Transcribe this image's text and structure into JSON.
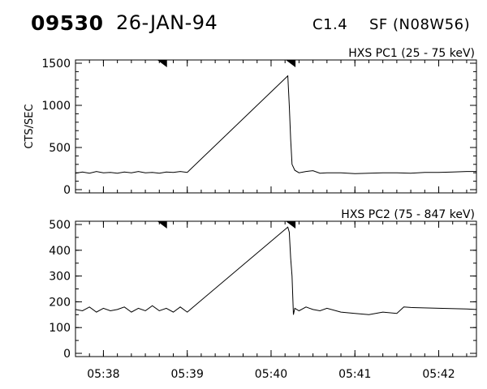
{
  "header": {
    "event_number": "09530",
    "date": "26-JAN-94",
    "flare_class": "C1.4",
    "flare_location": "SF (N08W56)"
  },
  "chart_data": [
    {
      "type": "line",
      "title": "HXS PC1 (25 - 75 keV)",
      "ylabel": "CTS/SEC",
      "xlim": [
        "05:37:40",
        "05:42:27"
      ],
      "ylim": [
        0,
        1500
      ],
      "yticks": [
        "0",
        "500",
        "1000",
        "1500"
      ],
      "xticks": [
        "05:38",
        "05:39",
        "05:40",
        "05:41",
        "05:42"
      ],
      "markers": [
        "05:38:42",
        "05:40:14"
      ],
      "series": [
        {
          "x": [
            "05:37:40",
            "05:37:45",
            "05:37:50",
            "05:37:55",
            "05:38:00",
            "05:38:05",
            "05:38:10",
            "05:38:15",
            "05:38:20",
            "05:38:25",
            "05:38:30",
            "05:38:35",
            "05:38:40",
            "05:38:45",
            "05:38:50",
            "05:38:55",
            "05:39:00",
            "05:40:12",
            "05:40:13",
            "05:40:14",
            "05:40:15",
            "05:40:17",
            "05:40:20",
            "05:40:25",
            "05:40:30",
            "05:40:35",
            "05:40:40",
            "05:40:50",
            "05:41:00",
            "05:41:10",
            "05:41:20",
            "05:41:30",
            "05:41:40",
            "05:41:50",
            "05:42:00",
            "05:42:10",
            "05:42:20",
            "05:42:27"
          ],
          "values": [
            195,
            210,
            195,
            215,
            200,
            205,
            195,
            210,
            200,
            215,
            200,
            205,
            195,
            210,
            205,
            215,
            205,
            1350,
            1000,
            600,
            300,
            230,
            200,
            215,
            225,
            195,
            200,
            200,
            190,
            195,
            200,
            200,
            195,
            205,
            205,
            210,
            215,
            215
          ]
        }
      ]
    },
    {
      "type": "line",
      "title": "HXS PC2 (75 - 847 keV)",
      "ylabel": "",
      "xlim": [
        "05:37:40",
        "05:42:27"
      ],
      "ylim": [
        0,
        500
      ],
      "yticks": [
        "0",
        "100",
        "200",
        "300",
        "400",
        "500"
      ],
      "xticks": [
        "05:38",
        "05:39",
        "05:40",
        "05:41",
        "05:42"
      ],
      "markers": [
        "05:38:42",
        "05:40:14"
      ],
      "series": [
        {
          "x": [
            "05:37:40",
            "05:37:45",
            "05:37:50",
            "05:37:55",
            "05:38:00",
            "05:38:05",
            "05:38:10",
            "05:38:15",
            "05:38:20",
            "05:38:25",
            "05:38:30",
            "05:38:35",
            "05:38:40",
            "05:38:45",
            "05:38:50",
            "05:38:55",
            "05:39:00",
            "05:40:12",
            "05:40:13",
            "05:40:14",
            "05:40:15",
            "05:40:16",
            "05:40:17",
            "05:40:20",
            "05:40:25",
            "05:40:30",
            "05:40:35",
            "05:40:40",
            "05:40:50",
            "05:41:00",
            "05:41:10",
            "05:41:20",
            "05:41:30",
            "05:41:35",
            "05:41:40",
            "05:42:00",
            "05:42:20",
            "05:42:27"
          ],
          "values": [
            170,
            165,
            180,
            160,
            175,
            165,
            170,
            180,
            160,
            175,
            165,
            185,
            165,
            175,
            160,
            180,
            160,
            490,
            470,
            370,
            300,
            150,
            175,
            165,
            180,
            170,
            165,
            175,
            160,
            155,
            150,
            160,
            155,
            180,
            178,
            175,
            172,
            170
          ]
        }
      ]
    }
  ]
}
